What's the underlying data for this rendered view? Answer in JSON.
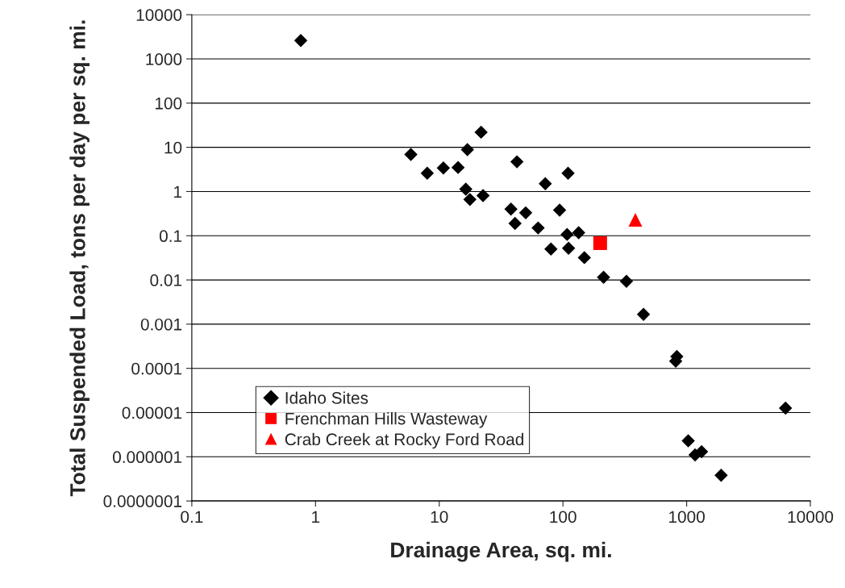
{
  "chart_data": {
    "type": "scatter",
    "xlabel": "Drainage Area, sq. mi.",
    "ylabel": "Total Suspended Load, tons per day per sq. mi.",
    "log": "xy",
    "grid": "y",
    "legend": "bottom left",
    "xlim": [
      0.1,
      10000
    ],
    "xticks": [
      0.1,
      1,
      10,
      100,
      1000,
      10000
    ],
    "ylim": [
      1e-07,
      10000
    ],
    "yticks": [
      {
        "value": 1e-07,
        "label": "0.0000001"
      },
      {
        "value": 1e-06,
        "label": "0.000001"
      },
      {
        "value": 1e-05,
        "label": "0.00001"
      },
      {
        "value": 0.0001,
        "label": "0.0001"
      },
      {
        "value": 0.001,
        "label": "0.001"
      },
      {
        "value": 0.01,
        "label": "0.01"
      },
      {
        "value": 0.1,
        "label": "0.1"
      },
      1,
      10,
      100,
      1000,
      10000
    ],
    "series": [
      {
        "name": "Idaho Sites",
        "color": "#000000",
        "marker": "diamond",
        "x": [
          0.76,
          5.9,
          8.0,
          10.8,
          14.2,
          16.9,
          21.8,
          16.4,
          17.7,
          22.6,
          38,
          41,
          42.5,
          50,
          63,
          72,
          80,
          94,
          110,
          108,
          111,
          134,
          149,
          213,
          326,
          448,
          833,
          816,
          6300,
          1030,
          1170,
          1320,
          1900
        ],
        "values": [
          2600,
          6.9,
          2.6,
          3.4,
          3.5,
          8.9,
          22,
          1.13,
          0.66,
          0.81,
          0.4,
          0.19,
          4.7,
          0.33,
          0.15,
          1.5,
          0.05,
          0.38,
          2.6,
          0.107,
          0.052,
          0.117,
          0.032,
          0.0115,
          0.0093,
          0.00166,
          0.000186,
          0.000145,
          1.26e-05,
          2.3e-06,
          1.1e-06,
          1.3e-06,
          3.8e-07
        ]
      },
      {
        "name": "Frenchman Hills Wasteway",
        "color": "#ff0000",
        "marker": "square",
        "x": [
          200
        ],
        "values": [
          0.068
        ]
      },
      {
        "name": "Crab Creek at Rocky Ford Road",
        "color": "#ff0000",
        "marker": "triangle",
        "x": [
          385
        ],
        "values": [
          0.23
        ]
      }
    ]
  }
}
